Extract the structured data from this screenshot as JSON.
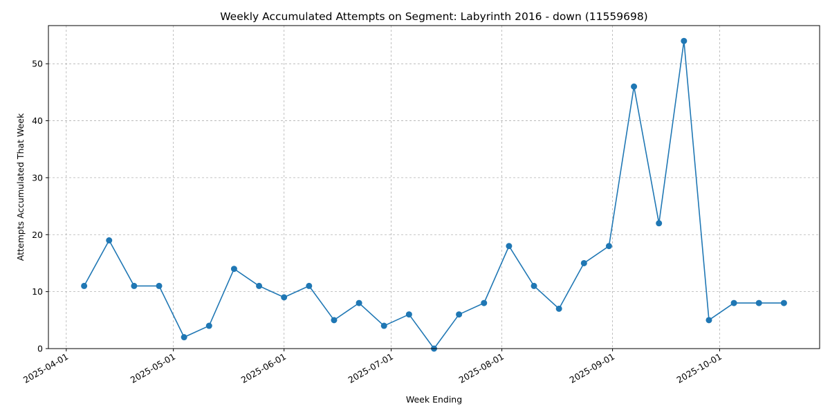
{
  "chart_data": {
    "type": "line",
    "title": "Weekly Accumulated Attempts on Segment: Labyrinth 2016 - down (11559698)",
    "xlabel": "Week Ending",
    "ylabel": "Attempts Accumulated That Week",
    "xlim": [
      "2025-03-27",
      "2025-10-29"
    ],
    "ylim": [
      0,
      56.7
    ],
    "x_ticks": [
      "2025-04-01",
      "2025-05-01",
      "2025-06-01",
      "2025-07-01",
      "2025-08-01",
      "2025-09-01",
      "2025-10-01"
    ],
    "y_ticks": [
      0,
      10,
      20,
      30,
      40,
      50
    ],
    "grid": true,
    "color": "#1f77b4",
    "series": [
      {
        "x": [
          "2025-04-06",
          "2025-04-13",
          "2025-04-20",
          "2025-04-27",
          "2025-05-04",
          "2025-05-11",
          "2025-05-18",
          "2025-05-25",
          "2025-06-01",
          "2025-06-08",
          "2025-06-15",
          "2025-06-22",
          "2025-06-29",
          "2025-07-06",
          "2025-07-13",
          "2025-07-20",
          "2025-07-27",
          "2025-08-03",
          "2025-08-10",
          "2025-08-17",
          "2025-08-24",
          "2025-08-31",
          "2025-09-07",
          "2025-09-14",
          "2025-09-21",
          "2025-09-28",
          "2025-10-05",
          "2025-10-12",
          "2025-10-19"
        ],
        "y": [
          11,
          19,
          11,
          11,
          2,
          4,
          14,
          11,
          9,
          11,
          5,
          8,
          4,
          6,
          0,
          6,
          8,
          18,
          11,
          7,
          15,
          18,
          46,
          22,
          54,
          5,
          8,
          8,
          8
        ]
      }
    ]
  }
}
